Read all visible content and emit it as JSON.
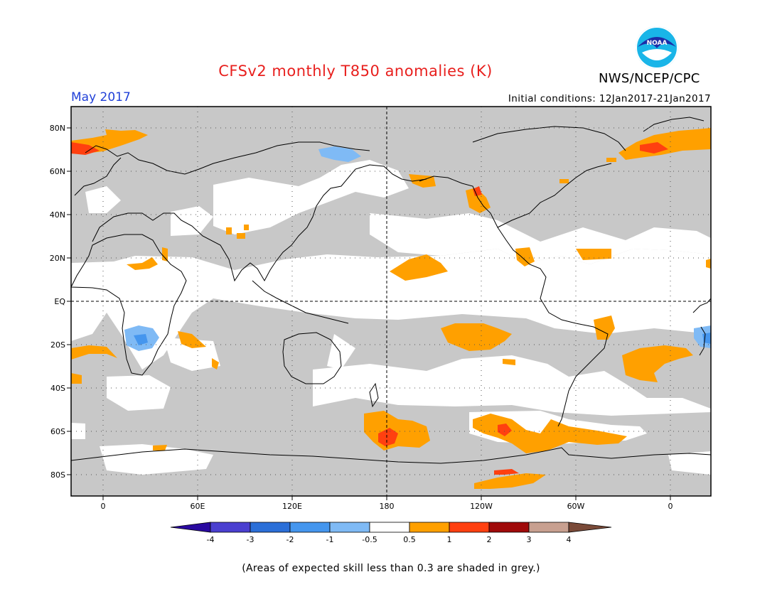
{
  "header": {
    "title": "CFSv2 monthly T850 anomalies (K)",
    "org": "NWS/NCEP/CPC",
    "logo_text": "NOAA",
    "month": "May 2017",
    "initial_conditions": "Initial conditions: 12Jan2017-21Jan2017"
  },
  "map": {
    "lat_labels": [
      "80N",
      "60N",
      "40N",
      "20N",
      "EQ",
      "20S",
      "40S",
      "60S",
      "80S"
    ],
    "lon_labels": [
      "0",
      "60E",
      "120E",
      "180",
      "120W",
      "60W",
      "0"
    ],
    "colors": {
      "land_skill_grey": "#c8c8c8",
      "coast": "#000000"
    }
  },
  "legend": {
    "tick_labels": [
      "-4",
      "-3",
      "-2",
      "-1",
      "-0.5",
      "0.5",
      "1",
      "2",
      "3",
      "4"
    ],
    "colors": [
      "#2a0aa0",
      "#4a3fd0",
      "#2b6fd8",
      "#4596ee",
      "#7fbaf5",
      "#ffffff",
      "#ffa000",
      "#ff4010",
      "#a00a0a",
      "#c8a090",
      "#7a4a38"
    ]
  },
  "footnote": "(Areas of expected skill less than 0.3 are shaded in grey.)"
}
